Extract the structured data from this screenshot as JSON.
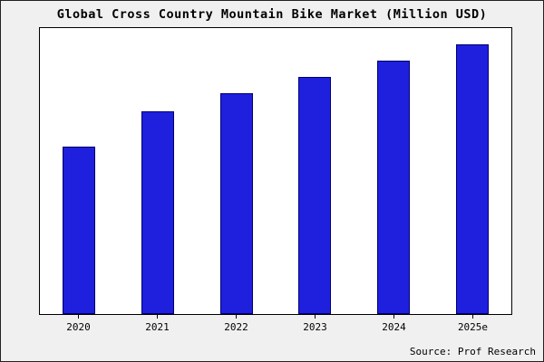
{
  "chart_data": {
    "type": "bar",
    "title": "Global Cross Country Mountain Bike Market (Million USD)",
    "categories": [
      "2020",
      "2021",
      "2022",
      "2023",
      "2024",
      "2025e"
    ],
    "values": [
      62,
      75,
      82,
      88,
      94,
      100
    ],
    "xlabel": "",
    "ylabel": "",
    "ylim": [
      0,
      106
    ],
    "grid": false,
    "y_axis_shown": false,
    "legend_position": "none",
    "bar_color": "#1f1fde",
    "bar_border_color": "#000070",
    "plot_background": "#ffffff",
    "page_background": "#f0f0f0"
  },
  "footer": {
    "source": "Source: Prof Research"
  }
}
